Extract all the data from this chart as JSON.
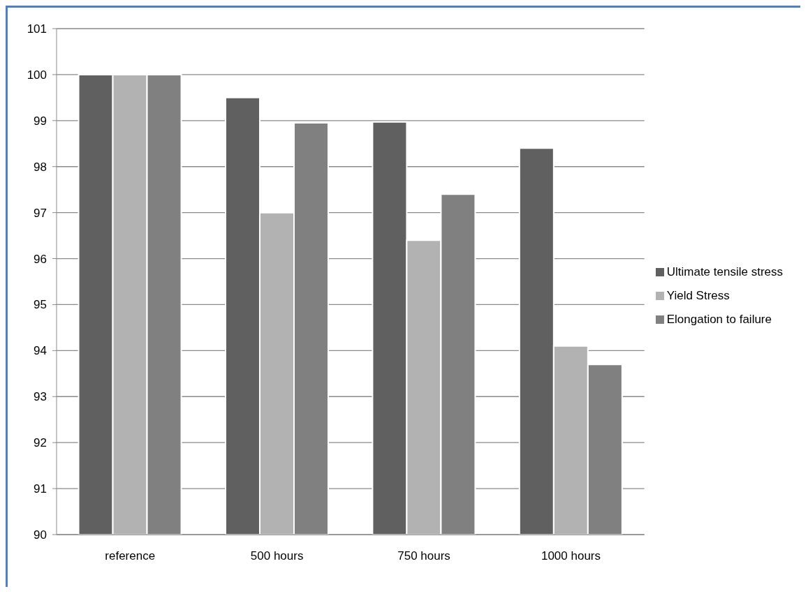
{
  "chart_data": {
    "type": "bar",
    "categories": [
      "reference",
      "500 hours",
      "750 hours",
      "1000 hours"
    ],
    "series": [
      {
        "name": "Ultimate tensile stress",
        "color": "#606060",
        "values": [
          100,
          99.5,
          98.97,
          98.4
        ]
      },
      {
        "name": "Yield Stress",
        "color": "#b2b2b2",
        "values": [
          100,
          97.0,
          96.4,
          94.1
        ]
      },
      {
        "name": "Elongation to failure",
        "color": "#808080",
        "values": [
          100,
          98.95,
          97.4,
          93.7
        ]
      }
    ],
    "ylim": [
      90,
      101
    ],
    "yticks": [
      90,
      91,
      92,
      93,
      94,
      95,
      96,
      97,
      98,
      99,
      100,
      101
    ],
    "grid": "y",
    "legend": "right"
  }
}
